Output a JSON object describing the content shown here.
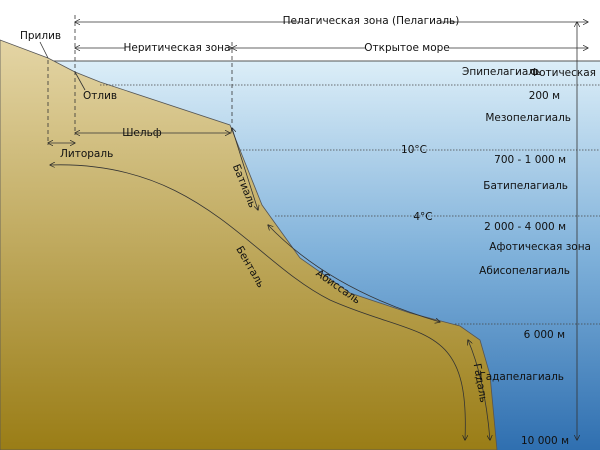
{
  "surface_zones": {
    "pelagic": "Пелагическая зона (Пелагиаль)",
    "neritic": "Неритическая зона",
    "open_sea": "Открытое море",
    "photic": "Фотическая",
    "aphotic": "Афотическая зона"
  },
  "tides": {
    "high": "Прилив",
    "low": "Отлив"
  },
  "bottom_zones": {
    "shelf": "Шельф",
    "littoral": "Литораль",
    "bathyal": "Батиаль",
    "benthal": "Бенталь",
    "abyssal": "Абиссаль",
    "hadal": "Гадаль"
  },
  "pelagic_layers": {
    "epipelagic": "Эпипелагиаль",
    "mesopelagic": "Мезопелагиаль",
    "bathypelagic": "Батипелагиаль",
    "abyssopelagic": "Абисопелагиаль",
    "hadopelagic": "Гадапелагиаль"
  },
  "depths": {
    "d200": "200 м",
    "d1000": "700 - 1 000 м",
    "d4000": "2 000 - 4 000 м",
    "d6000": "6 000 м",
    "d10000": "10 000 м"
  },
  "temperatures": {
    "t10": "10°C",
    "t4": "4°C"
  }
}
